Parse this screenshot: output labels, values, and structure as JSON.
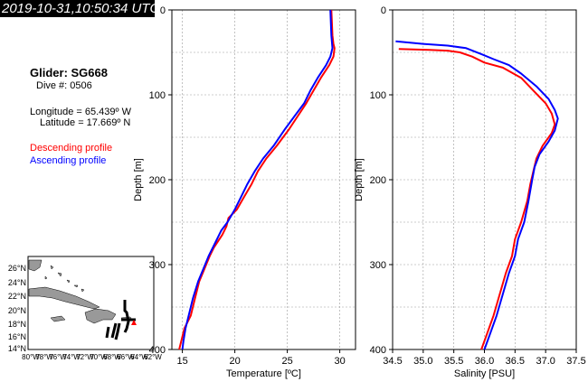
{
  "timestamp": "2019-10-31,10:50:34 UTC",
  "info": {
    "glider": "Glider: SG668",
    "dive": "Dive #: 0506",
    "longitude": "Longitude = 65.439º W",
    "latitude": "Latitude = 17.669º N",
    "legend_descending": "Descending profile",
    "legend_ascending": "Ascending profile"
  },
  "colors": {
    "descending": "#ff0000",
    "ascending": "#0000ff",
    "land": "#999999",
    "track": "#000000",
    "position": "#ff0000"
  },
  "map": {
    "lat_labels": [
      "14°N",
      "16°N",
      "18°N",
      "20°N",
      "22°N",
      "24°N",
      "26°N"
    ],
    "lon_labels": [
      "80°W",
      "78°W",
      "76°W",
      "74°W",
      "72°W",
      "70°W",
      "68°W",
      "66°W",
      "64°W",
      "62°W"
    ]
  },
  "chart_data": [
    {
      "type": "line",
      "xlabel": "Temperature [ºC]",
      "ylabel": "Depth [m]",
      "xlim": [
        14,
        31.5
      ],
      "ylim": [
        400,
        0
      ],
      "xticks": [
        15,
        20,
        25,
        30
      ],
      "yticks": [
        0,
        100,
        200,
        300,
        400
      ],
      "grid": true,
      "series": [
        {
          "name": "Descending profile",
          "color": "#ff0000",
          "points": [
            [
              29.2,
              0
            ],
            [
              29.3,
              30
            ],
            [
              29.4,
              40
            ],
            [
              29.5,
              45
            ],
            [
              29.4,
              55
            ],
            [
              29.0,
              65
            ],
            [
              28.2,
              80
            ],
            [
              27.5,
              95
            ],
            [
              26.8,
              110
            ],
            [
              26.0,
              125
            ],
            [
              25.2,
              140
            ],
            [
              24.0,
              160
            ],
            [
              23.0,
              175
            ],
            [
              22.2,
              190
            ],
            [
              21.6,
              205
            ],
            [
              20.9,
              220
            ],
            [
              20.2,
              235
            ],
            [
              19.4,
              245
            ],
            [
              19.2,
              255
            ],
            [
              18.8,
              265
            ],
            [
              18.0,
              280
            ],
            [
              17.6,
              290
            ],
            [
              17.1,
              305
            ],
            [
              16.6,
              320
            ],
            [
              16.2,
              340
            ],
            [
              15.8,
              360
            ],
            [
              15.2,
              375
            ],
            [
              14.9,
              390
            ],
            [
              14.7,
              400
            ]
          ]
        },
        {
          "name": "Ascending profile",
          "color": "#0000ff",
          "points": [
            [
              29.1,
              0
            ],
            [
              29.2,
              30
            ],
            [
              29.3,
              45
            ],
            [
              29.1,
              55
            ],
            [
              28.7,
              65
            ],
            [
              27.9,
              80
            ],
            [
              27.2,
              95
            ],
            [
              26.6,
              110
            ],
            [
              25.7,
              125
            ],
            [
              24.8,
              140
            ],
            [
              23.7,
              160
            ],
            [
              22.7,
              175
            ],
            [
              21.9,
              190
            ],
            [
              21.2,
              205
            ],
            [
              20.6,
              220
            ],
            [
              20.0,
              235
            ],
            [
              19.3,
              250
            ],
            [
              18.7,
              260
            ],
            [
              18.1,
              275
            ],
            [
              17.5,
              290
            ],
            [
              17.0,
              305
            ],
            [
              16.5,
              320
            ],
            [
              16.0,
              340
            ],
            [
              15.6,
              360
            ],
            [
              15.3,
              375
            ],
            [
              15.1,
              390
            ],
            [
              15.0,
              400
            ]
          ]
        }
      ]
    },
    {
      "type": "line",
      "xlabel": "Salinity [PSU]",
      "ylabel": "Depth [m]",
      "xlim": [
        34.5,
        37.5
      ],
      "ylim": [
        400,
        0
      ],
      "xticks": [
        34.5,
        35.0,
        35.5,
        36.0,
        36.5,
        37.0,
        37.5
      ],
      "yticks": [
        0,
        100,
        200,
        300,
        400
      ],
      "grid": true,
      "series": [
        {
          "name": "Descending profile",
          "color": "#ff0000",
          "points": [
            [
              34.6,
              46
            ],
            [
              35.1,
              47
            ],
            [
              35.4,
              48
            ],
            [
              35.6,
              50
            ],
            [
              35.8,
              55
            ],
            [
              36.0,
              62
            ],
            [
              36.3,
              68
            ],
            [
              36.6,
              80
            ],
            [
              36.8,
              95
            ],
            [
              37.0,
              110
            ],
            [
              37.1,
              122
            ],
            [
              37.15,
              135
            ],
            [
              37.1,
              145
            ],
            [
              36.95,
              160
            ],
            [
              36.85,
              175
            ],
            [
              36.8,
              190
            ],
            [
              36.75,
              205
            ],
            [
              36.7,
              225
            ],
            [
              36.6,
              250
            ],
            [
              36.5,
              270
            ],
            [
              36.45,
              290
            ],
            [
              36.35,
              310
            ],
            [
              36.25,
              335
            ],
            [
              36.15,
              360
            ],
            [
              36.05,
              380
            ],
            [
              35.95,
              400
            ]
          ]
        },
        {
          "name": "Ascending profile",
          "color": "#0000ff",
          "points": [
            [
              34.55,
              37
            ],
            [
              35.0,
              40
            ],
            [
              35.4,
              42
            ],
            [
              35.7,
              45
            ],
            [
              35.95,
              52
            ],
            [
              36.15,
              58
            ],
            [
              36.4,
              65
            ],
            [
              36.6,
              75
            ],
            [
              36.85,
              90
            ],
            [
              37.05,
              105
            ],
            [
              37.15,
              118
            ],
            [
              37.2,
              128
            ],
            [
              37.15,
              142
            ],
            [
              37.05,
              155
            ],
            [
              36.9,
              170
            ],
            [
              36.82,
              185
            ],
            [
              36.78,
              200
            ],
            [
              36.72,
              225
            ],
            [
              36.65,
              250
            ],
            [
              36.55,
              270
            ],
            [
              36.5,
              290
            ],
            [
              36.4,
              310
            ],
            [
              36.3,
              335
            ],
            [
              36.2,
              360
            ],
            [
              36.1,
              380
            ],
            [
              36.0,
              400
            ]
          ]
        }
      ]
    }
  ]
}
